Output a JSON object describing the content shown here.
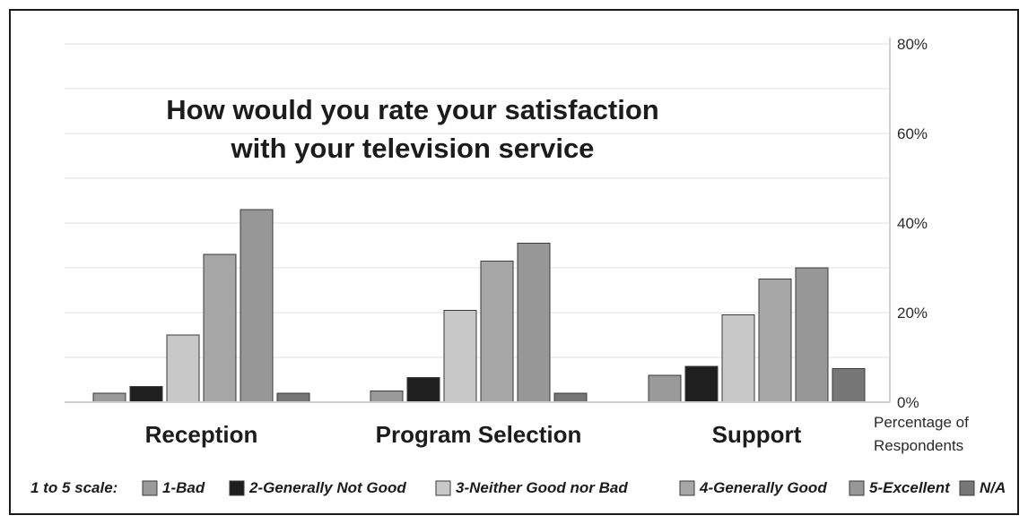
{
  "chart_data": {
    "type": "bar",
    "title_lines": [
      "How would you rate your satisfaction",
      "with your television service"
    ],
    "categories": [
      "Reception",
      "Program Selection",
      "Support"
    ],
    "ylabel_lines": [
      "Percentage of",
      "Respondents"
    ],
    "ylim": [
      0,
      80
    ],
    "yticks": [
      {
        "value": 0,
        "label": "0%"
      },
      {
        "value": 20,
        "label": "20%"
      },
      {
        "value": 40,
        "label": "40%"
      },
      {
        "value": 60,
        "label": "60%"
      },
      {
        "value": 80,
        "label": "80%"
      }
    ],
    "grid": true,
    "legend_position": "bottom",
    "legend_title": "1 to 5 scale:",
    "series": [
      {
        "name": "1-Bad",
        "values": [
          2,
          2.5,
          6
        ],
        "color": "#9a9a9a"
      },
      {
        "name": "2-Generally Not Good",
        "values": [
          3.5,
          5.5,
          8
        ],
        "color": "#1f1f1f"
      },
      {
        "name": "3-Neither Good nor Bad",
        "values": [
          15,
          20.5,
          19.5
        ],
        "color": "#c8c8c8"
      },
      {
        "name": "4-Generally Good",
        "values": [
          33,
          31.5,
          27.5
        ],
        "color": "#a6a6a6"
      },
      {
        "name": "5-Excellent",
        "values": [
          43,
          35.5,
          30
        ],
        "color": "#979797"
      },
      {
        "name": "N/A",
        "values": [
          2,
          2,
          7.5
        ],
        "color": "#777777"
      }
    ]
  }
}
